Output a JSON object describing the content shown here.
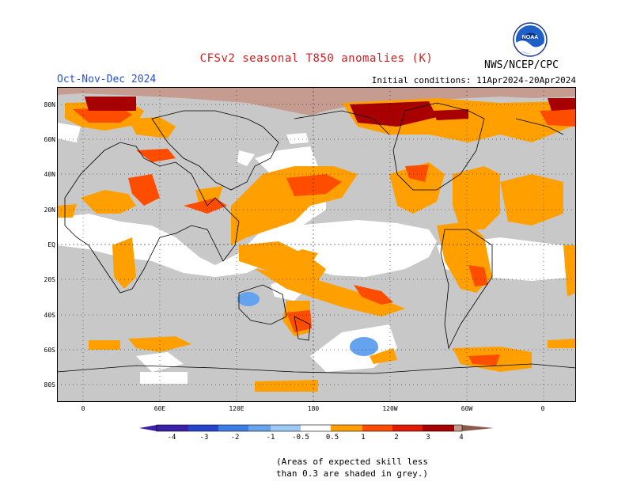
{
  "title": "CFSv2 seasonal T850 anomalies (K)",
  "season": "Oct-Nov-Dec 2024",
  "initial_conditions": "Initial conditions: 11Apr2024-20Apr2024",
  "agency": "NWS/NCEP/CPC",
  "logo_text": "NOAA",
  "lat_labels": [
    "80N",
    "60N",
    "40N",
    "20N",
    "EQ",
    "20S",
    "40S",
    "60S",
    "80S"
  ],
  "lon_labels": [
    "0",
    "60E",
    "120E",
    "180",
    "120W",
    "60W",
    "0"
  ],
  "colorbar_labels": [
    "-4",
    "-3",
    "-2",
    "-1",
    "-0.5",
    "0.5",
    "1",
    "2",
    "3",
    "4"
  ],
  "colors": {
    "skill_grey": "#c8c8c8",
    "neg_4": "#3b1fa8",
    "neg_3": "#2546cc",
    "neg_2": "#3d7ee6",
    "neg_1": "#66a3ee",
    "neg_05": "#9cc8f6",
    "pos_05": "#ffa000",
    "pos_1": "#ff4d00",
    "pos_2": "#e01a00",
    "pos_3": "#a80000",
    "pos_4": "#c59c8f",
    "pos_max": "#8a5a4a"
  },
  "note_lines": [
    "(Areas of expected skill less",
    "than 0.3 are shaded in grey.)"
  ]
}
